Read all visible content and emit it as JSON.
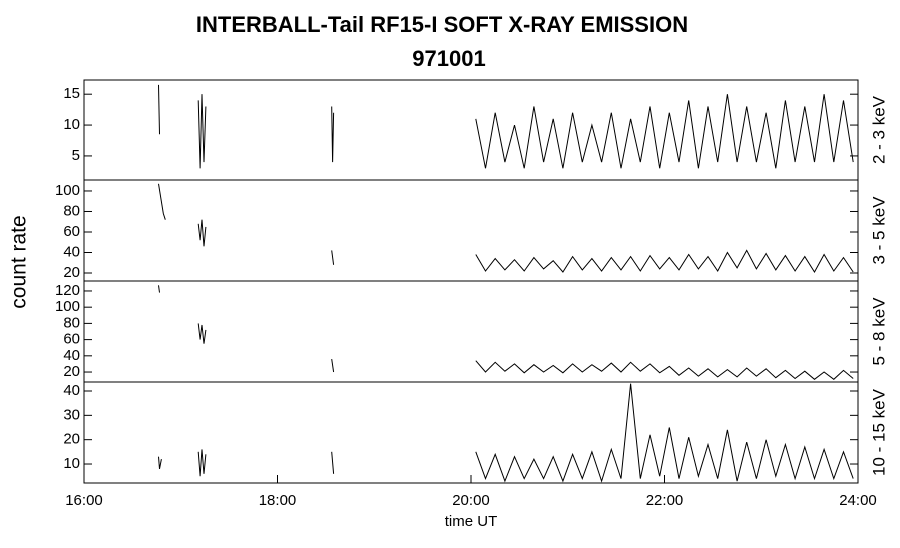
{
  "chart_data": [
    {
      "type": "line",
      "title": "INTERBALL-Tail RF15-I SOFT X-RAY EMISSION",
      "subtitle": "971001",
      "ylabel": "count rate",
      "label": "2 - 3 keV",
      "color": "#000000",
      "xlim": [
        16,
        24
      ],
      "ylim": [
        1.1,
        17.3
      ],
      "yticks": [
        5,
        10,
        15
      ],
      "x": [
        16.77,
        16.78,
        16.8,
        17.18,
        17.2,
        17.22,
        17.24,
        17.26,
        17.3,
        18.56,
        18.57,
        18.58,
        18.6,
        20.05,
        20.15,
        20.25,
        20.35,
        20.45,
        20.55,
        20.65,
        20.75,
        20.85,
        20.95,
        21.05,
        21.15,
        21.25,
        21.35,
        21.45,
        21.55,
        21.65,
        21.75,
        21.85,
        21.95,
        22.05,
        22.15,
        22.25,
        22.35,
        22.45,
        22.55,
        22.65,
        22.75,
        22.85,
        22.95,
        23.05,
        23.15,
        23.25,
        23.35,
        23.45,
        23.55,
        23.65,
        23.75,
        23.85,
        23.95
      ],
      "values": [
        16.5,
        8.5,
        null,
        14,
        3,
        15,
        4,
        13,
        null,
        13,
        4,
        12,
        null,
        11,
        3,
        12,
        4,
        10,
        3,
        13,
        4,
        11,
        3,
        12,
        4,
        10,
        4,
        12,
        3,
        11,
        4,
        13,
        3,
        12,
        4,
        14,
        3,
        13,
        4,
        15,
        4,
        13,
        4,
        12,
        3,
        14,
        4,
        13,
        4,
        15,
        4,
        14,
        4
      ]
    },
    {
      "type": "line",
      "label": "3 - 5 keV",
      "color": "#000000",
      "xlim": [
        16,
        24
      ],
      "ylim": [
        12.2,
        110.7
      ],
      "yticks": [
        20,
        40,
        60,
        80,
        100
      ],
      "x": [
        16.77,
        16.82,
        16.84,
        16.86,
        17.18,
        17.2,
        17.22,
        17.24,
        17.26,
        17.3,
        18.56,
        18.58,
        18.6,
        20.05,
        20.15,
        20.25,
        20.35,
        20.45,
        20.55,
        20.65,
        20.75,
        20.85,
        20.95,
        21.05,
        21.15,
        21.25,
        21.35,
        21.45,
        21.55,
        21.65,
        21.75,
        21.85,
        21.95,
        22.05,
        22.15,
        22.25,
        22.35,
        22.45,
        22.55,
        22.65,
        22.75,
        22.85,
        22.95,
        23.05,
        23.15,
        23.25,
        23.35,
        23.45,
        23.55,
        23.65,
        23.75,
        23.85,
        23.95
      ],
      "values": [
        107,
        78,
        72,
        null,
        68,
        52,
        72,
        46,
        65,
        null,
        42,
        28,
        null,
        38,
        22,
        34,
        23,
        33,
        22,
        35,
        24,
        32,
        21,
        36,
        23,
        34,
        22,
        35,
        23,
        36,
        22,
        37,
        24,
        35,
        23,
        38,
        24,
        36,
        22,
        40,
        25,
        42,
        24,
        39,
        23,
        37,
        22,
        36,
        21,
        38,
        22,
        35,
        21
      ]
    },
    {
      "type": "line",
      "label": "5 - 8 keV",
      "color": "#000000",
      "xlim": [
        16,
        24
      ],
      "ylim": [
        7.7,
        132.3
      ],
      "yticks": [
        20,
        40,
        60,
        80,
        100,
        120
      ],
      "x": [
        16.77,
        16.78,
        16.8,
        17.18,
        17.2,
        17.22,
        17.24,
        17.26,
        17.3,
        18.56,
        18.58,
        18.6,
        20.05,
        20.15,
        20.25,
        20.35,
        20.45,
        20.55,
        20.65,
        20.75,
        20.85,
        20.95,
        21.05,
        21.15,
        21.25,
        21.35,
        21.45,
        21.55,
        21.65,
        21.75,
        21.85,
        21.95,
        22.05,
        22.15,
        22.25,
        22.35,
        22.45,
        22.55,
        22.65,
        22.75,
        22.85,
        22.95,
        23.05,
        23.15,
        23.25,
        23.35,
        23.45,
        23.55,
        23.65,
        23.75,
        23.85,
        23.95
      ],
      "values": [
        127,
        118,
        null,
        80,
        60,
        78,
        55,
        72,
        null,
        36,
        20,
        null,
        34,
        20,
        32,
        21,
        30,
        19,
        29,
        20,
        28,
        19,
        30,
        20,
        29,
        21,
        31,
        20,
        32,
        21,
        30,
        19,
        27,
        16,
        25,
        15,
        24,
        14,
        23,
        14,
        25,
        15,
        24,
        13,
        22,
        12,
        21,
        11,
        20,
        11,
        22,
        12
      ]
    },
    {
      "type": "line",
      "label": "10 - 15 keV",
      "xlabel": "time UT",
      "color": "#000000",
      "xlim": [
        16,
        24
      ],
      "ylim": [
        2.2,
        43.7
      ],
      "yticks": [
        10,
        20,
        30,
        40
      ],
      "xticks": [
        {
          "value": 16,
          "label": "16:00"
        },
        {
          "value": 18,
          "label": "18:00"
        },
        {
          "value": 20,
          "label": "20:00"
        },
        {
          "value": 22,
          "label": "22:00"
        },
        {
          "value": 24,
          "label": "24:00"
        }
      ],
      "x": [
        16.77,
        16.78,
        16.8,
        16.82,
        17.18,
        17.2,
        17.22,
        17.24,
        17.26,
        17.3,
        18.56,
        18.58,
        18.6,
        20.05,
        20.15,
        20.25,
        20.35,
        20.45,
        20.55,
        20.65,
        20.75,
        20.85,
        20.95,
        21.05,
        21.15,
        21.25,
        21.35,
        21.45,
        21.55,
        21.65,
        21.75,
        21.85,
        21.95,
        22.05,
        22.15,
        22.25,
        22.35,
        22.45,
        22.55,
        22.65,
        22.75,
        22.85,
        22.95,
        23.05,
        23.15,
        23.25,
        23.35,
        23.45,
        23.55,
        23.65,
        23.75,
        23.85,
        23.95
      ],
      "values": [
        13,
        8,
        12,
        null,
        15,
        5,
        16,
        6,
        14,
        null,
        15,
        6,
        null,
        15,
        4,
        14,
        3,
        13,
        4,
        12,
        4,
        13,
        3,
        14,
        4,
        15,
        3,
        16,
        4,
        43,
        4,
        22,
        5,
        25,
        4,
        21,
        5,
        18,
        4,
        24,
        3,
        19,
        4,
        20,
        5,
        18,
        4,
        17,
        4,
        16,
        4,
        15,
        4
      ]
    }
  ]
}
